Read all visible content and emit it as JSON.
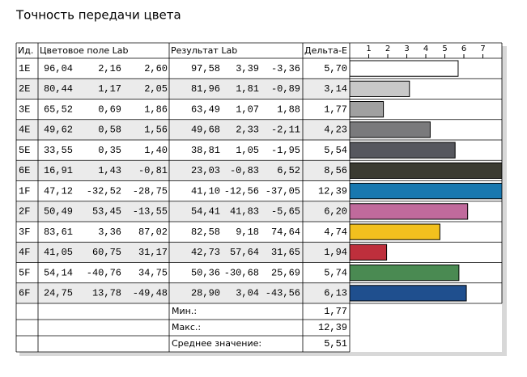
{
  "title": "Точность передачи цвета",
  "table": {
    "headers": [
      "Ид.",
      "Цветовое поле Lab",
      "Результат Lab",
      "Дельта-E"
    ],
    "rows": [
      [
        "96,04",
        "2,16",
        "2,60",
        "97,58",
        "3,39",
        "-3,36"
      ],
      [
        "80,44",
        "1,17",
        "2,05",
        "81,96",
        "1,81",
        "-0,89"
      ],
      [
        "65,52",
        "0,69",
        "1,86",
        "63,49",
        "1,07",
        "1,88"
      ],
      [
        "49,62",
        "0,58",
        "1,56",
        "49,68",
        "2,33",
        "-2,11"
      ],
      [
        "33,55",
        "0,35",
        "1,40",
        "38,81",
        "1,05",
        "-1,95"
      ],
      [
        "16,91",
        "1,43",
        "-0,81",
        "23,03",
        "-0,83",
        "6,52"
      ],
      [
        "47,12",
        "-32,52",
        "-28,75",
        "41,10",
        "-12,56",
        "-37,05"
      ],
      [
        "50,49",
        "53,45",
        "-13,55",
        "54,41",
        "41,83",
        "-5,65"
      ],
      [
        "83,61",
        "3,36",
        "87,02",
        "82,58",
        "9,18",
        "74,64"
      ],
      [
        "41,05",
        "60,75",
        "31,17",
        "42,73",
        "57,64",
        "31,65"
      ],
      [
        "54,14",
        "-40,76",
        "34,75",
        "50,36",
        "-30,68",
        "25,69"
      ],
      [
        "24,75",
        "13,78",
        "-49,48",
        "28,90",
        "3,04",
        "-43,56"
      ]
    ],
    "summary": [
      {
        "label": "Мин.:",
        "value": "1,77"
      },
      {
        "label": "Макс.:",
        "value": "12,39"
      },
      {
        "label": "Среднее значение:",
        "value": "5,51"
      }
    ]
  },
  "chart_data": {
    "type": "bar",
    "categories": [
      "1E",
      "2E",
      "3E",
      "4E",
      "5E",
      "6E",
      "1F",
      "2F",
      "3F",
      "4F",
      "5F",
      "6F"
    ],
    "values": [
      5.7,
      3.14,
      1.77,
      4.23,
      5.54,
      8.56,
      12.39,
      6.2,
      4.74,
      1.94,
      5.74,
      6.13
    ],
    "value_labels": [
      "5,70",
      "3,14",
      "1,77",
      "4,23",
      "5,54",
      "8,56",
      "12,39",
      "6,20",
      "4,74",
      "1,94",
      "5,74",
      "6,13"
    ],
    "colors": [
      "#ffffff",
      "#c8c8c8",
      "#a0a0a0",
      "#7a7a7c",
      "#56575e",
      "#3b3b32",
      "#1878b0",
      "#c06a9c",
      "#f2c01e",
      "#be2f3c",
      "#4a8a52",
      "#1f4f8e"
    ],
    "xlim": [
      0,
      8
    ],
    "xticks": [
      1,
      2,
      3,
      4,
      5,
      6,
      7
    ]
  }
}
